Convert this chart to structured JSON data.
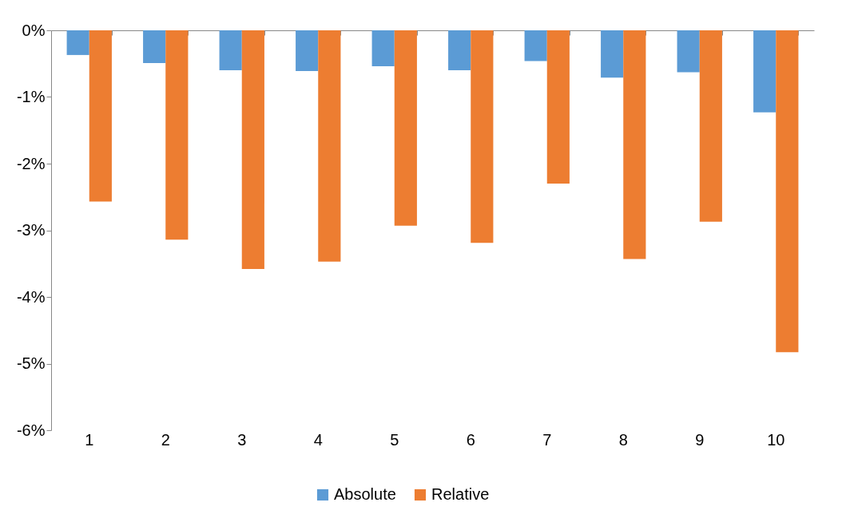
{
  "chart_data": {
    "type": "bar",
    "categories": [
      "1",
      "2",
      "3",
      "4",
      "5",
      "6",
      "7",
      "8",
      "9",
      "10"
    ],
    "series": [
      {
        "name": "Absolute",
        "color": "#5b9bd5",
        "values": [
          -0.37,
          -0.49,
          -0.6,
          -0.61,
          -0.54,
          -0.6,
          -0.46,
          -0.71,
          -0.63,
          -1.23
        ]
      },
      {
        "name": "Relative",
        "color": "#ed7d31",
        "values": [
          -2.57,
          -3.14,
          -3.58,
          -3.47,
          -2.93,
          -3.19,
          -2.3,
          -3.43,
          -2.87,
          -4.83
        ]
      }
    ],
    "ylim": [
      -6,
      0
    ],
    "yticks": [
      {
        "value": 0,
        "label": "0%"
      },
      {
        "value": -1,
        "label": "-1%"
      },
      {
        "value": -2,
        "label": "-2%"
      },
      {
        "value": -3,
        "label": "-3%"
      },
      {
        "value": -4,
        "label": "-4%"
      },
      {
        "value": -5,
        "label": "-5%"
      },
      {
        "value": -6,
        "label": "-6%"
      }
    ],
    "legend": "bottom",
    "grid": false
  }
}
